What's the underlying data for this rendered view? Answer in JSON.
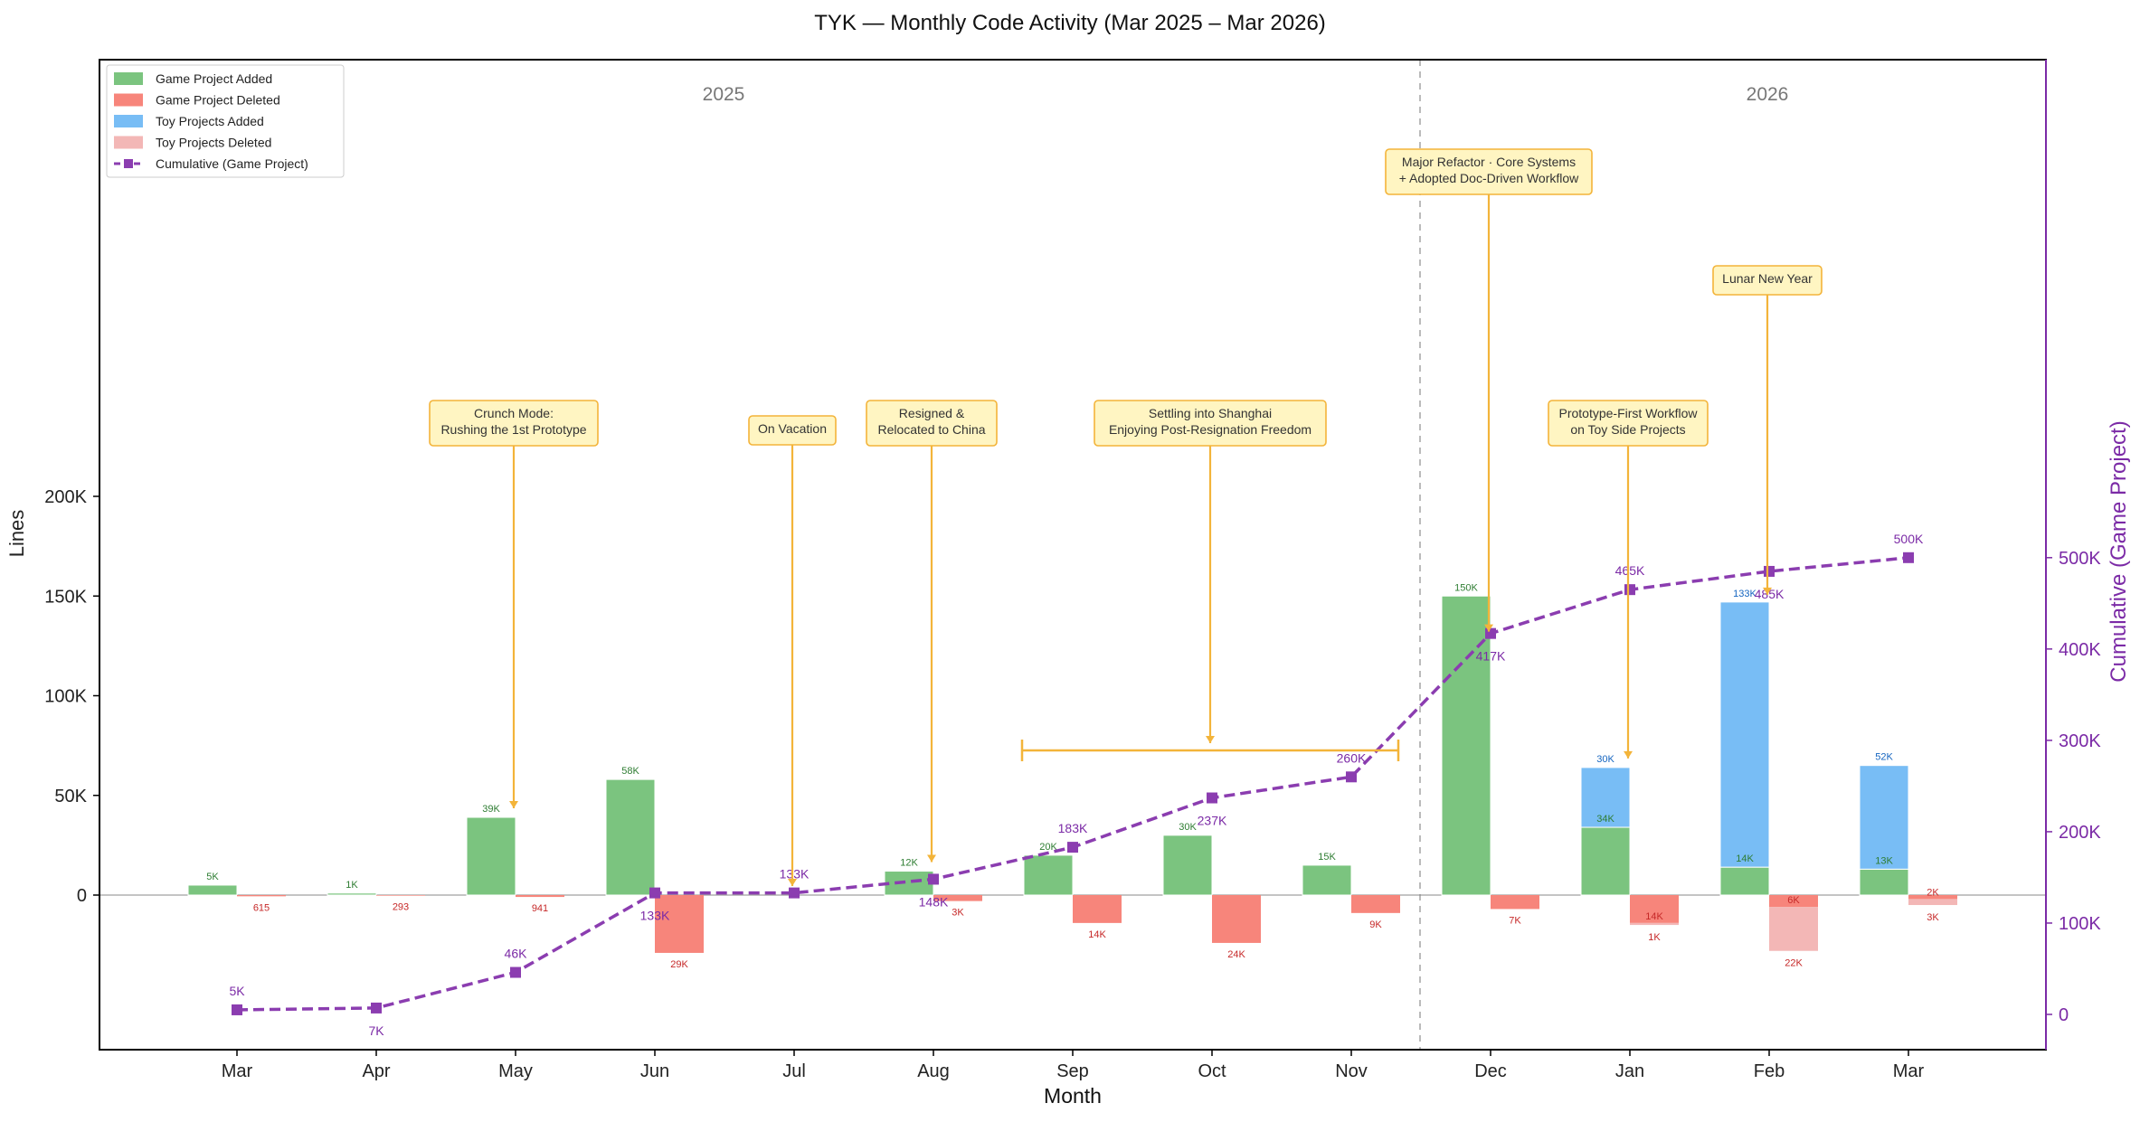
{
  "chart_data": {
    "type": "bar",
    "title": "TYK — Monthly Code Activity (Mar 2025 – Mar 2026)",
    "xlabel": "Month",
    "ylabel": "Lines",
    "y2label": "Cumulative (Game Project)",
    "categories": [
      "Mar",
      "Apr",
      "May",
      "Jun",
      "Jul",
      "Aug",
      "Sep",
      "Oct",
      "Nov",
      "Dec",
      "Jan",
      "Feb",
      "Mar"
    ],
    "ylim": [
      -39000,
      209000
    ],
    "yticks": [
      0,
      50000,
      100000,
      150000,
      200000
    ],
    "ytick_labels": [
      "0",
      "50K",
      "100K",
      "150K",
      "200K"
    ],
    "y2lim": [
      -20000,
      520000
    ],
    "y2ticks": [
      0,
      100000,
      200000,
      300000,
      400000,
      500000
    ],
    "y2tick_labels": [
      "0",
      "100K",
      "200K",
      "300K",
      "400K",
      "500K"
    ],
    "legend_position": "top-left",
    "grid": false,
    "year_labels": [
      "2025",
      "2026"
    ],
    "series": [
      {
        "name": "Game Project Added",
        "color": "#7bc47f",
        "values": [
          5000,
          1000,
          39000,
          58000,
          0,
          12000,
          20000,
          30000,
          15000,
          150000,
          34000,
          14000,
          13000
        ],
        "labels": [
          "5K",
          "1K",
          "39K",
          "58K",
          null,
          "12K",
          "20K",
          "30K",
          "15K",
          "150K",
          "34K",
          "14K",
          "13K"
        ]
      },
      {
        "name": "Toy Projects Added",
        "color": "#78bdf5",
        "values": [
          0,
          0,
          0,
          0,
          0,
          0,
          0,
          0,
          0,
          0,
          30000,
          133000,
          52000
        ],
        "labels": [
          null,
          null,
          null,
          null,
          null,
          null,
          null,
          null,
          null,
          null,
          "30K",
          "133K",
          "52K"
        ]
      },
      {
        "name": "Game Project Deleted",
        "color": "#f7857b",
        "values": [
          615,
          293,
          941,
          29000,
          0,
          3000,
          14000,
          24000,
          9000,
          7000,
          14000,
          6000,
          2000
        ],
        "labels": [
          "615",
          "293",
          "941",
          "29K",
          null,
          "3K",
          "14K",
          "24K",
          "9K",
          "7K",
          "14K",
          "6K",
          "2K"
        ]
      },
      {
        "name": "Toy Projects Deleted",
        "color": "#f3b7b6",
        "values": [
          0,
          0,
          0,
          0,
          0,
          0,
          0,
          0,
          0,
          0,
          1000,
          22000,
          3000
        ],
        "labels": [
          null,
          null,
          null,
          null,
          null,
          null,
          null,
          null,
          null,
          null,
          "1K",
          "22K",
          "3K"
        ]
      },
      {
        "name": "Cumulative (Game Project)",
        "color": "#8b3db0",
        "axis": "right",
        "values": [
          5000,
          7000,
          46000,
          133000,
          133000,
          148000,
          183000,
          237000,
          260000,
          417000,
          465000,
          485000,
          500000
        ],
        "labels": [
          "5K",
          "7K",
          "46K",
          "133K",
          "133K",
          "148K",
          "183K",
          "237K",
          "260K",
          "417K",
          "465K",
          "485K",
          "500K"
        ]
      }
    ],
    "annotations": [
      {
        "text": [
          "Crunch Mode:",
          "Rushing the 1st Prototype"
        ],
        "month": "May"
      },
      {
        "text": [
          "On Vacation"
        ],
        "month": "Jul"
      },
      {
        "text": [
          "Resigned &",
          "Relocated to China"
        ],
        "month": "Aug"
      },
      {
        "text": [
          "Settling into Shanghai",
          "Enjoying Post-Resignation Freedom"
        ],
        "month": "Oct"
      },
      {
        "text": [
          "Major Refactor · Core Systems",
          "+ Adopted Doc-Driven Workflow"
        ],
        "month": "Dec"
      },
      {
        "text": [
          "Prototype-First Workflow",
          "on Toy Side Projects"
        ],
        "month": "Jan"
      },
      {
        "text": [
          "Lunar New Year"
        ],
        "month": "Feb"
      }
    ]
  }
}
